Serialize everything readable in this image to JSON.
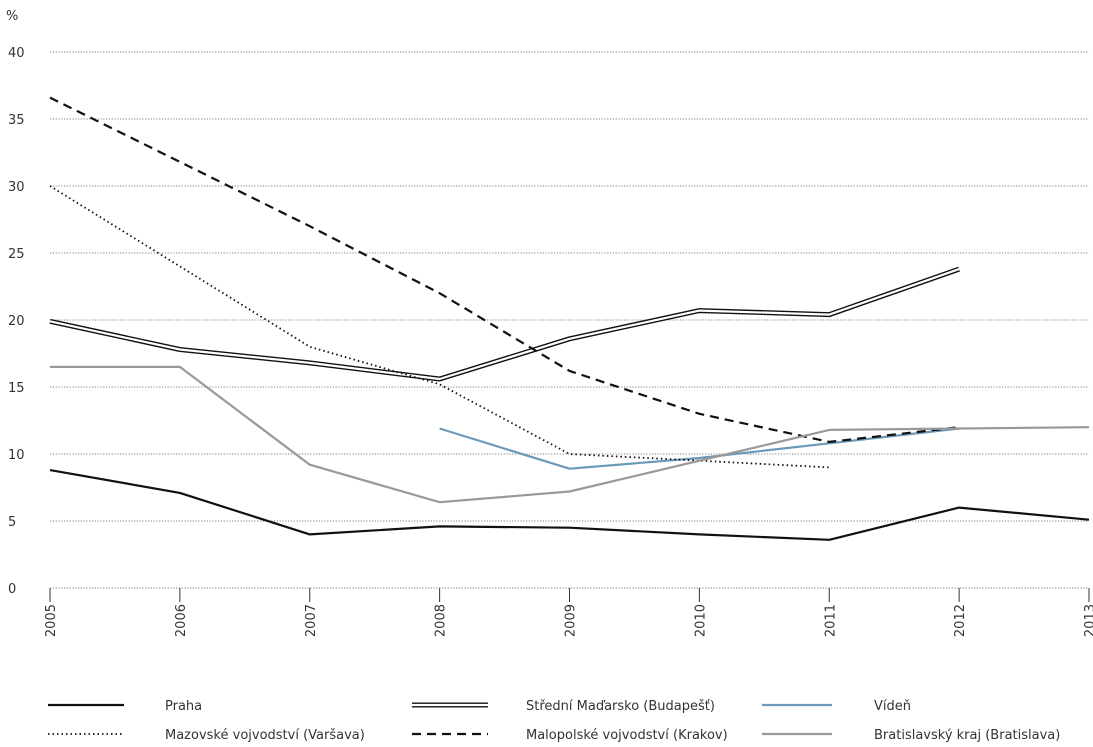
{
  "chart_data": {
    "type": "line",
    "title": "",
    "xlabel": "",
    "ylabel": "",
    "unit_label": "%",
    "x": [
      "2005",
      "2006",
      "2007",
      "2008",
      "2009",
      "2010",
      "2011",
      "2012",
      "2013"
    ],
    "ylim": [
      0,
      40
    ],
    "y_ticks": [
      "0",
      "5",
      "10",
      "15",
      "20",
      "25",
      "30",
      "35",
      "40"
    ],
    "grid": "horizontal-dotted",
    "legend_position": "bottom",
    "series": [
      {
        "name": "Praha",
        "style": "solid",
        "color": "#111111",
        "values": [
          8.8,
          7.1,
          4.0,
          4.6,
          4.5,
          4.0,
          3.6,
          6.0,
          5.1
        ]
      },
      {
        "name": "Střední Maďarsko (Budapešť)",
        "style": "double",
        "color": "#111111",
        "values": [
          19.9,
          17.8,
          16.8,
          15.6,
          18.6,
          20.7,
          20.4,
          23.8,
          null
        ]
      },
      {
        "name": "Vídeň",
        "style": "solid",
        "color": "#6a9ab8",
        "values": [
          null,
          null,
          null,
          11.9,
          8.9,
          9.7,
          10.8,
          11.9,
          null
        ]
      },
      {
        "name": "Mazovské vojvodství (Varšava)",
        "style": "dotted",
        "color": "#111111",
        "values": [
          30.0,
          24.0,
          18.0,
          15.2,
          10.0,
          9.5,
          9.0,
          null,
          null
        ]
      },
      {
        "name": "Malopolské vojvodství (Krakov)",
        "style": "dashed",
        "color": "#111111",
        "values": [
          36.6,
          31.8,
          27.0,
          22.0,
          16.2,
          13.0,
          10.9,
          12.0,
          null
        ]
      },
      {
        "name": "Bratislavský kraj (Bratislava)",
        "style": "solid",
        "color": "#999999",
        "values": [
          16.5,
          16.5,
          9.2,
          6.4,
          7.2,
          9.5,
          11.8,
          11.9,
          12.0
        ]
      }
    ]
  }
}
